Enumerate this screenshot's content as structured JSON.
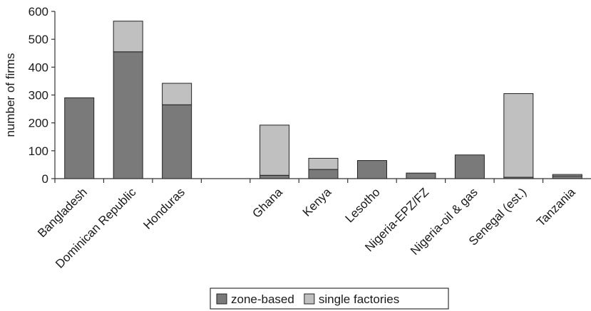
{
  "chart_data": {
    "type": "bar",
    "stacked": true,
    "title": "",
    "xlabel": "",
    "ylabel": "number of firms",
    "ylim": [
      0,
      600
    ],
    "yticks": [
      0,
      100,
      200,
      300,
      400,
      500,
      600
    ],
    "grid": false,
    "legend_position": "bottom-center",
    "categories": [
      "Bangladesh",
      "Dominican Republic",
      "Honduras",
      "",
      "Ghana",
      "Kenya",
      "Lesotho",
      "Nigeria-EPZ/FZ",
      "Nigeria-oil & gas",
      "Senegal (est.)",
      "Tanzania"
    ],
    "series": [
      {
        "name": "zone-based",
        "color": "#7a7a7a",
        "values": [
          290,
          455,
          265,
          0,
          12,
          33,
          65,
          20,
          85,
          5,
          10
        ]
      },
      {
        "name": "single factories",
        "color": "#c0c0c0",
        "values": [
          0,
          110,
          77,
          0,
          180,
          40,
          0,
          0,
          0,
          300,
          5
        ]
      }
    ]
  }
}
